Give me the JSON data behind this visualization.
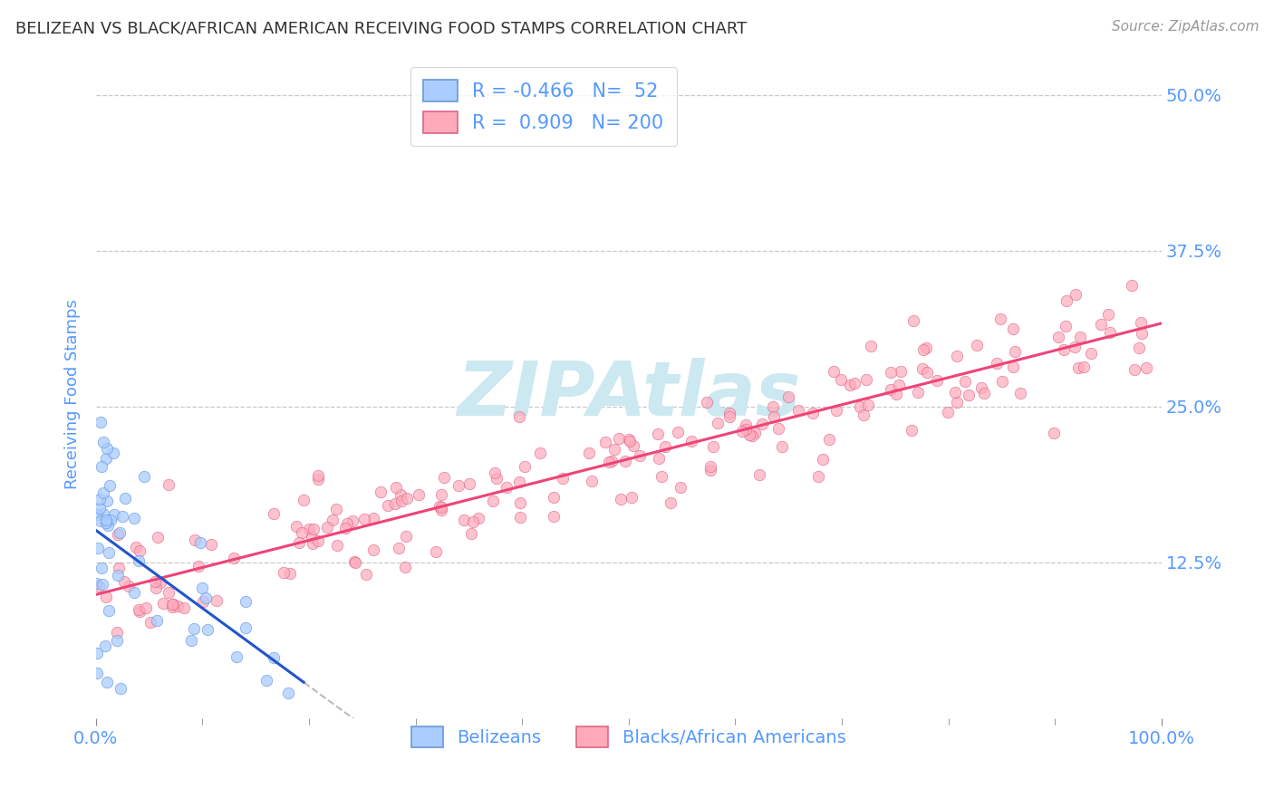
{
  "title": "BELIZEAN VS BLACK/AFRICAN AMERICAN RECEIVING FOOD STAMPS CORRELATION CHART",
  "source": "Source: ZipAtlas.com",
  "ylabel": "Receiving Food Stamps",
  "background_color": "#ffffff",
  "grid_color": "#bbbbbb",
  "title_color": "#333333",
  "source_color": "#999999",
  "axis_color": "#5599ff",
  "belizean_scatter_color": "#aaccff",
  "belizean_edge_color": "#6699dd",
  "belizean_line_color": "#2255cc",
  "black_scatter_color": "#ffaabb",
  "black_edge_color": "#dd6688",
  "black_line_color": "#ee4477",
  "watermark_color": "#cce8f0",
  "ext_line_color": "#bbbbbb",
  "R_belizean": -0.466,
  "N_belizean": 52,
  "R_black": 0.909,
  "N_black": 200,
  "xmin": 0.0,
  "xmax": 1.0,
  "ymin": 0.0,
  "ymax": 0.52,
  "yticks": [
    0.125,
    0.25,
    0.375,
    0.5
  ],
  "ytick_labels": [
    "12.5%",
    "25.0%",
    "37.5%",
    "50.0%"
  ],
  "legend_label_belizean": "Belizeans",
  "legend_label_black": "Blacks/African Americans",
  "legend_R_bel": "R = -0.466",
  "legend_N_bel": "N=  52",
  "legend_R_blk": "R =  0.909",
  "legend_N_blk": "N= 200"
}
